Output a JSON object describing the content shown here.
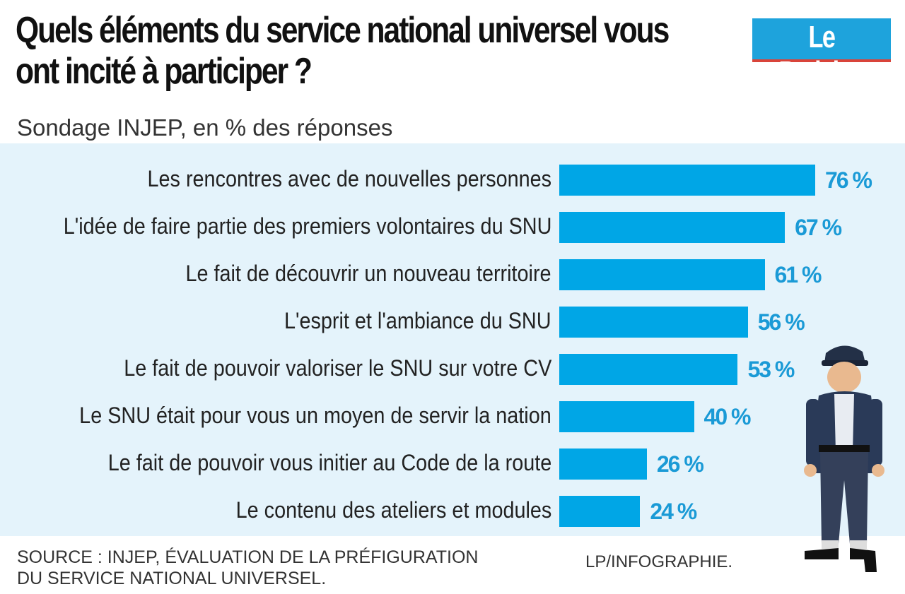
{
  "title": "Quels éléments du service national universel vous ont incité à participer ?",
  "subtitle": "Sondage INJEP, en % des réponses",
  "logo": "Le Parisien",
  "source": [
    "SOURCE : INJEP, ÉVALUATION DE LA PRÉFIGURATION",
    "DU SERVICE NATIONAL UNIVERSEL."
  ],
  "credit": "LP/INFOGRAPHIE.",
  "colors": {
    "bar": "#00a6e6",
    "value_label": "#1a9ad6",
    "panel": "#e4f3fb"
  },
  "chart_data": {
    "type": "bar",
    "orientation": "horizontal",
    "categories": [
      "Les rencontres avec de nouvelles personnes",
      "L'idée de faire partie des premiers volontaires du SNU",
      "Le fait de découvrir un nouveau territoire",
      "L'esprit et l'ambiance du SNU",
      "Le fait de pouvoir valoriser le SNU sur votre CV",
      "Le SNU était pour vous un moyen de servir la nation",
      "Le fait de pouvoir vous initier au Code de la route",
      "Le contenu des ateliers et modules"
    ],
    "values": [
      76,
      67,
      61,
      56,
      53,
      40,
      26,
      24
    ],
    "value_labels": [
      "76 %",
      "67 %",
      "61 %",
      "56 %",
      "53 %",
      "40 %",
      "26 %",
      "24 %"
    ],
    "grid": false
  }
}
